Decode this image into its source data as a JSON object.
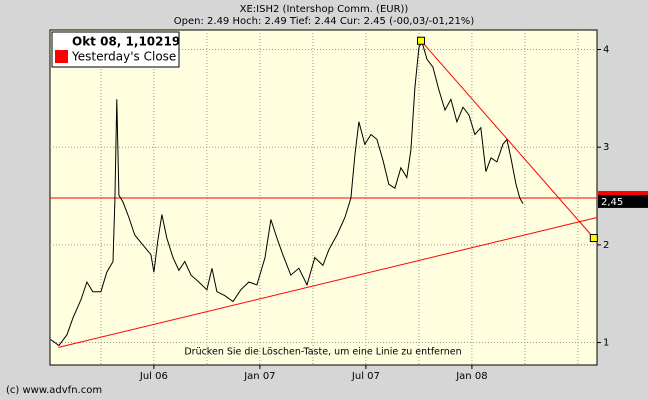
{
  "chart_data": {
    "type": "line",
    "title": "XE:ISH2 (Intershop Comm. (EUR))",
    "subtitle": "Open: 2.49 Hoch: 2.49 Tief: 2.44 Cur: 2.45 (-00,03/-01,21%)",
    "legend_title": "Okt 08, 1,10219",
    "legend_entry": "Yesterday's Close",
    "yesterday_close": 2.48,
    "yesterday_close_color": "#ff0000",
    "current": {
      "value": 2.45,
      "label": "2,45"
    },
    "hint": "Drücken Sie die Löschen-Taste, um eine Linie zu entfernen",
    "copyright": "(c) www.advfn.com",
    "xlim": [
      2006.01,
      2008.59
    ],
    "xticks": [
      {
        "value": 2006.5,
        "label": "Jul 06"
      },
      {
        "value": 2007,
        "label": "Jan 07"
      },
      {
        "value": 2007.5,
        "label": "Jul 07"
      },
      {
        "value": 2008,
        "label": "Jan 08"
      }
    ],
    "xgrid": [
      2006.25,
      2006.5,
      2006.75,
      2007,
      2007.25,
      2007.5,
      2007.75,
      2008,
      2008.25,
      2008.5
    ],
    "ylim": [
      0.77,
      4.2
    ],
    "yticks": [
      1,
      2,
      3,
      4
    ],
    "grid": true,
    "series": [
      {
        "color": "#000000",
        "x": [
          2006.014,
          2006.052,
          2006.09,
          2006.118,
          2006.156,
          2006.184,
          2006.212,
          2006.25,
          2006.278,
          2006.307,
          2006.316,
          2006.325,
          2006.335,
          2006.354,
          2006.382,
          2006.41,
          2006.448,
          2006.486,
          2006.5,
          2006.519,
          2006.538,
          2006.561,
          2006.59,
          2006.618,
          2006.646,
          2006.675,
          2006.712,
          2006.75,
          2006.774,
          2006.797,
          2006.835,
          2006.873,
          2006.91,
          2006.948,
          2006.986,
          2007.024,
          2007.052,
          2007.08,
          2007.108,
          2007.146,
          2007.184,
          2007.222,
          2007.259,
          2007.297,
          2007.325,
          2007.363,
          2007.401,
          2007.429,
          2007.448,
          2007.467,
          2007.495,
          2007.524,
          2007.552,
          2007.58,
          2007.608,
          2007.637,
          2007.665,
          2007.693,
          2007.712,
          2007.731,
          2007.75,
          2007.764,
          2007.788,
          2007.816,
          2007.844,
          2007.873,
          2007.901,
          2007.929,
          2007.958,
          2007.986,
          2008.014,
          2008.042,
          2008.066,
          2008.09,
          2008.118,
          2008.146,
          2008.165,
          2008.184,
          2008.208,
          2008.226,
          2008.241
        ],
        "values": [
          1.03,
          0.97,
          1.08,
          1.25,
          1.44,
          1.62,
          1.52,
          1.52,
          1.72,
          1.83,
          2.46,
          3.49,
          2.51,
          2.44,
          2.28,
          2.1,
          2.0,
          1.9,
          1.72,
          2.05,
          2.31,
          2.07,
          1.87,
          1.74,
          1.83,
          1.69,
          1.62,
          1.54,
          1.76,
          1.52,
          1.48,
          1.42,
          1.54,
          1.62,
          1.59,
          1.87,
          2.26,
          2.07,
          1.9,
          1.69,
          1.76,
          1.59,
          1.87,
          1.79,
          1.95,
          2.1,
          2.28,
          2.48,
          2.92,
          3.26,
          3.03,
          3.13,
          3.08,
          2.87,
          2.62,
          2.58,
          2.79,
          2.69,
          2.97,
          3.61,
          4.02,
          4.08,
          3.9,
          3.82,
          3.59,
          3.38,
          3.49,
          3.26,
          3.41,
          3.33,
          3.13,
          3.2,
          2.75,
          2.89,
          2.85,
          3.03,
          3.08,
          2.89,
          2.62,
          2.48,
          2.42
        ]
      }
    ],
    "trend_lines": [
      {
        "color": "#ff0000",
        "x": [
          2006.05,
          2008.59
        ],
        "y": [
          0.95,
          2.28
        ],
        "markers": false
      },
      {
        "color": "#ff0000",
        "x": [
          2007.76,
          2008.575
        ],
        "y": [
          4.09,
          2.07
        ],
        "markers": true
      }
    ]
  }
}
